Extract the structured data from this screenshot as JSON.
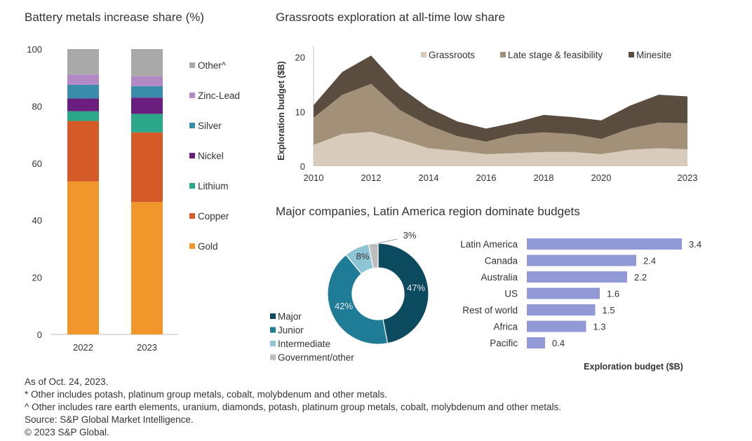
{
  "charts": {
    "stacked": {
      "title": "Battery metals increase share (%)",
      "chart_data": {
        "type": "bar",
        "stacked": true,
        "title": "Battery metals increase share (%)",
        "categories": [
          "2022",
          "2023"
        ],
        "ylim": [
          0,
          100
        ],
        "yticks": [
          "0",
          "20",
          "40",
          "60",
          "80",
          "100"
        ],
        "series": [
          {
            "name": "Gold",
            "color": "#F0962A",
            "values": [
              53.6,
              46.4
            ]
          },
          {
            "name": "Copper",
            "color": "#D45A27",
            "values": [
              21.2,
              24.4
            ]
          },
          {
            "name": "Lithium",
            "color": "#2BA88A",
            "values": [
              3.4,
              6.5
            ]
          },
          {
            "name": "Nickel",
            "color": "#6A1F7E",
            "values": [
              4.5,
              5.7
            ]
          },
          {
            "name": "Silver",
            "color": "#3A8DAA",
            "values": [
              4.8,
              4.0
            ]
          },
          {
            "name": "Zinc-Lead",
            "color": "#B289C4",
            "values": [
              3.6,
              3.5
            ]
          },
          {
            "name": "Other^",
            "color": "#A9A9A9",
            "values": [
              8.9,
              9.5
            ]
          }
        ],
        "legend_order": [
          "Other^",
          "Zinc-Lead",
          "Silver",
          "Nickel",
          "Lithium",
          "Copper",
          "Gold"
        ]
      }
    },
    "area": {
      "title": "Grassroots exploration at all-time low share",
      "chart_data": {
        "type": "area",
        "stacked": true,
        "title": "Grassroots exploration at all-time low share",
        "ylabel": "Exploration budget ($B)",
        "x": [
          2010,
          2011,
          2012,
          2013,
          2014,
          2015,
          2016,
          2017,
          2018,
          2019,
          2020,
          2021,
          2022,
          2023
        ],
        "xticks": [
          "2010",
          "2012",
          "2014",
          "2016",
          "2018",
          "2020",
          "2023"
        ],
        "xtick_values": [
          2010,
          2012,
          2014,
          2016,
          2018,
          2020,
          2023
        ],
        "xlim": [
          2010,
          2023
        ],
        "ylim": [
          0,
          22
        ],
        "yticks": [
          "0",
          "10",
          "20"
        ],
        "ytick_values": [
          0,
          10,
          20
        ],
        "series": [
          {
            "name": "Grassroots",
            "color": "#D9CBBB",
            "values": [
              3.9,
              5.9,
              6.3,
              4.9,
              3.3,
              2.8,
              2.2,
              2.4,
              2.6,
              2.6,
              2.2,
              3.0,
              3.3,
              3.1
            ]
          },
          {
            "name": "Late stage & feasibility",
            "color": "#A29178",
            "values": [
              5.0,
              7.2,
              8.8,
              5.4,
              4.2,
              2.7,
              2.3,
              3.4,
              3.6,
              3.3,
              2.8,
              3.9,
              4.7,
              4.8
            ]
          },
          {
            "name": "Minesite",
            "color": "#5A4C3E",
            "values": [
              2.3,
              4.2,
              5.2,
              4.2,
              3.2,
              2.7,
              2.4,
              2.2,
              3.2,
              3.1,
              3.4,
              4.2,
              5.1,
              4.9
            ]
          }
        ]
      }
    },
    "donut": {
      "title": "Major companies, Latin America region dominate budgets",
      "chart_data": {
        "type": "pie",
        "donut": true,
        "title": "Major companies, Latin America region dominate budgets",
        "slices": [
          {
            "name": "Major",
            "value": 47,
            "label": "47%",
            "color": "#0B4A5F"
          },
          {
            "name": "Junior",
            "value": 42,
            "label": "42%",
            "color": "#1F7C97"
          },
          {
            "name": "Intermediate",
            "value": 8,
            "label": "8%",
            "color": "#8EC5D4"
          },
          {
            "name": "Government/other",
            "value": 3,
            "label": "3%",
            "color": "#BDBDBD"
          }
        ]
      }
    },
    "hbar": {
      "chart_data": {
        "type": "bar",
        "orientation": "horizontal",
        "xlabel": "Exploration budget ($B)",
        "categories": [
          "Latin America",
          "Canada",
          "Australia",
          "US",
          "Rest of world",
          "Africa",
          "Pacific"
        ],
        "values": [
          3.4,
          2.4,
          2.2,
          1.6,
          1.5,
          1.3,
          0.4
        ],
        "value_labels": [
          "3.4",
          "2.4",
          "2.2",
          "1.6",
          "1.5",
          "1.3",
          "0.4"
        ],
        "color": "#9199D6",
        "xlim": [
          0,
          3.4
        ]
      }
    }
  },
  "footnotes": {
    "asof": "As of Oct. 24, 2023.",
    "note1": "* Other includes potash, platinum group metals, cobalt, molybdenum and other metals.",
    "note2": "^ Other includes rare earth elements, uranium, diamonds, potash, platinum group metals, cobalt, molybdenum and other metals.",
    "source": "Source: S&P Global Market Intelligence.",
    "copyright": "© 2023 S&P Global."
  }
}
